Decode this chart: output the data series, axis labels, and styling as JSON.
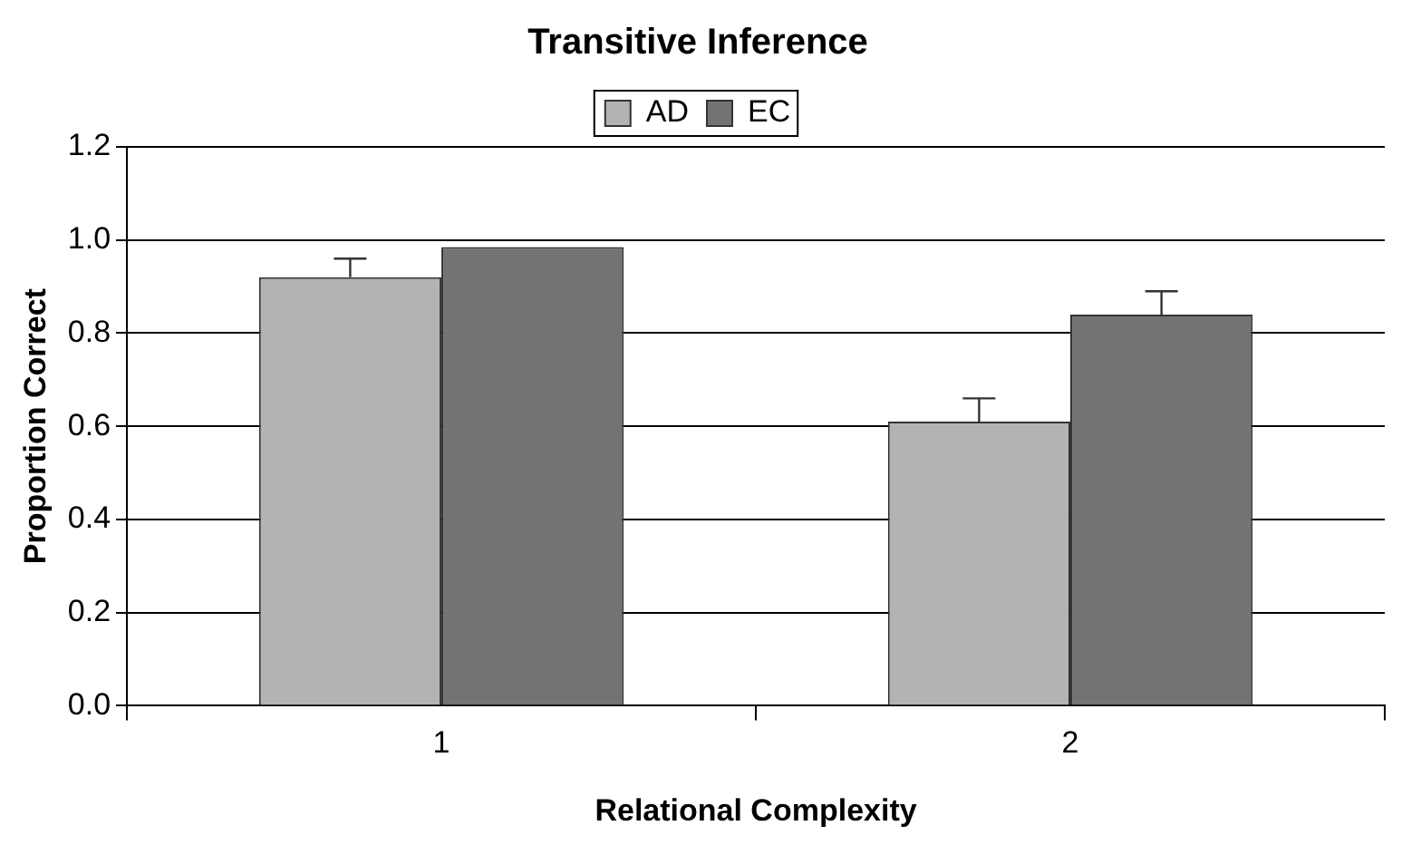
{
  "chart_data": {
    "type": "bar",
    "title": "Transitive Inference",
    "xlabel": "Relational Complexity",
    "ylabel": "Proportion Correct",
    "categories": [
      "1",
      "2"
    ],
    "series": [
      {
        "name": "AD",
        "color": "#b3b3b3",
        "values": [
          0.92,
          0.61
        ],
        "errors": [
          [
            0.92,
            0.96
          ],
          [
            0.61,
            0.66
          ]
        ]
      },
      {
        "name": "EC",
        "color": "#737373",
        "values": [
          0.985,
          0.84
        ],
        "errors": [
          null,
          [
            0.84,
            0.89
          ]
        ]
      }
    ],
    "ylim": [
      0,
      1.2
    ],
    "yticks": [
      {
        "value": 0,
        "label": "0.0"
      },
      {
        "value": 0.2,
        "label": "0.2"
      },
      {
        "value": 0.4,
        "label": "0.4"
      },
      {
        "value": 0.6,
        "label": "0.6"
      },
      {
        "value": 0.8,
        "label": "0.8"
      },
      {
        "value": 1,
        "label": "1.0"
      },
      {
        "value": 1.2,
        "label": "1.2"
      }
    ],
    "grid": "y",
    "legend": "top"
  }
}
